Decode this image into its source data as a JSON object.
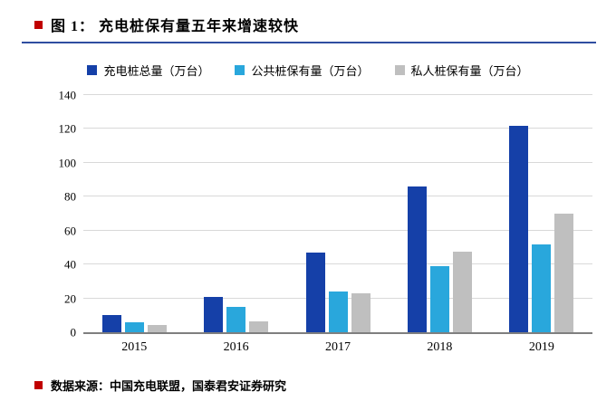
{
  "title": {
    "text": "图 1：  充电桩保有量五年来增速较快"
  },
  "footer": {
    "text": "数据来源：中国充电联盟，国泰君安证券研究"
  },
  "colors": {
    "accent_red": "#C00000",
    "rule_blue": "#2F4DA0",
    "grid": "#D9D9D9",
    "axis": "#7F7F7F",
    "series_total": "#1540A8",
    "series_public": "#29A7DC",
    "series_private": "#BFBFBF"
  },
  "chart_data": {
    "type": "bar",
    "title": "充电桩保有量五年来增速较快",
    "categories": [
      "2015",
      "2016",
      "2017",
      "2018",
      "2019"
    ],
    "series": [
      {
        "name": "充电桩总量（万台）",
        "color": "#1540A8",
        "values": [
          10,
          21,
          47,
          86,
          122
        ]
      },
      {
        "name": "公共桩保有量（万台）",
        "color": "#29A7DC",
        "values": [
          6,
          15,
          24,
          39,
          51.6
        ]
      },
      {
        "name": "私人桩保有量（万台）",
        "color": "#BFBFBF",
        "values": [
          4.5,
          6.5,
          23,
          47.5,
          70
        ]
      }
    ],
    "xlabel": "",
    "ylabel": "",
    "ylim": [
      0,
      140
    ],
    "ytick_step": 20,
    "grid": true,
    "legend_position": "top"
  }
}
